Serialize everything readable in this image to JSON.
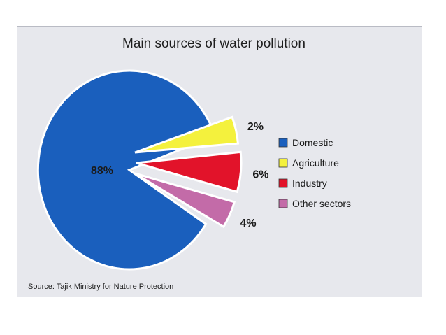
{
  "chart_data": {
    "type": "pie",
    "title": "Main sources of water pollution",
    "source": "Source: Tajik Ministry for Nature Protection",
    "slices": [
      {
        "name": "Domestic",
        "value": 88,
        "label": "88%",
        "color": "#1a5fbd"
      },
      {
        "name": "Agriculture",
        "value": 2,
        "label": "2%",
        "color": "#f4f13d"
      },
      {
        "name": "Industry",
        "value": 6,
        "label": "6%",
        "color": "#e2132a"
      },
      {
        "name": "Other sectors",
        "value": 4,
        "label": "4%",
        "color": "#c36ba8"
      }
    ],
    "legend_position": "right"
  }
}
